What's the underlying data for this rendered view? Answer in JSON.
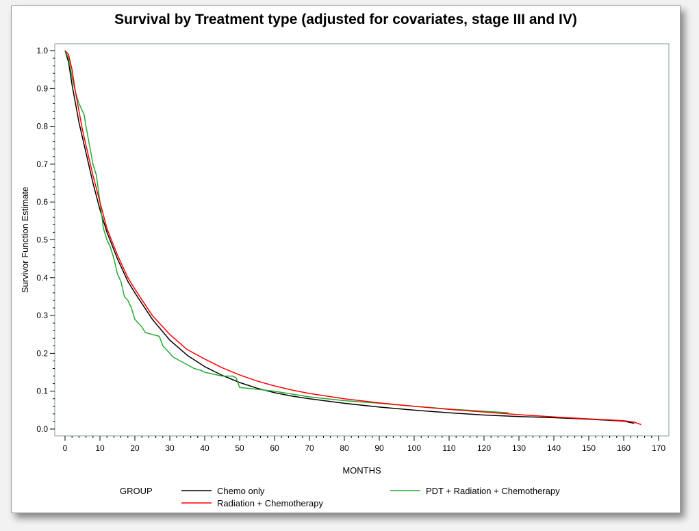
{
  "chart_data": {
    "type": "line",
    "title": "Survival by Treatment type (adjusted for covariates, stage III and IV)",
    "xlabel": "MONTHS",
    "ylabel": "Survivor Function Estimate",
    "xlim": [
      0,
      170
    ],
    "ylim": [
      0.0,
      1.0
    ],
    "xticks": [
      "0",
      "10",
      "20",
      "30",
      "40",
      "50",
      "60",
      "70",
      "80",
      "90",
      "100",
      "110",
      "120",
      "130",
      "140",
      "150",
      "160",
      "170"
    ],
    "yticks": [
      "0.0",
      "0.1",
      "0.2",
      "0.3",
      "0.4",
      "0.5",
      "0.6",
      "0.7",
      "0.8",
      "0.9",
      "1.0"
    ],
    "grid": false,
    "legend": {
      "title": "GROUP",
      "position": "bottom"
    },
    "series": [
      {
        "name": "Chemo only",
        "color": "#000000",
        "x": [
          0,
          1,
          2,
          3,
          4,
          5,
          6,
          7,
          8,
          10,
          12,
          15,
          18,
          20,
          25,
          30,
          35,
          40,
          45,
          50,
          55,
          60,
          65,
          70,
          80,
          90,
          100,
          110,
          120,
          130,
          140,
          150,
          160,
          163
        ],
        "y": [
          1.0,
          0.97,
          0.91,
          0.86,
          0.81,
          0.77,
          0.73,
          0.69,
          0.65,
          0.58,
          0.52,
          0.45,
          0.39,
          0.36,
          0.29,
          0.235,
          0.195,
          0.165,
          0.142,
          0.123,
          0.108,
          0.096,
          0.087,
          0.08,
          0.068,
          0.058,
          0.05,
          0.043,
          0.037,
          0.033,
          0.03,
          0.026,
          0.021,
          0.015
        ]
      },
      {
        "name": "Radiation + Chemotherapy",
        "color": "#ff0000",
        "x": [
          0,
          1,
          2,
          3,
          4,
          5,
          6,
          7,
          8,
          10,
          12,
          15,
          18,
          20,
          25,
          30,
          35,
          40,
          45,
          50,
          55,
          60,
          65,
          70,
          80,
          90,
          100,
          110,
          120,
          130,
          140,
          150,
          160,
          163,
          165
        ],
        "y": [
          1.0,
          0.99,
          0.95,
          0.89,
          0.84,
          0.79,
          0.75,
          0.71,
          0.67,
          0.6,
          0.53,
          0.46,
          0.4,
          0.37,
          0.3,
          0.25,
          0.21,
          0.185,
          0.162,
          0.143,
          0.127,
          0.114,
          0.103,
          0.094,
          0.08,
          0.069,
          0.06,
          0.052,
          0.045,
          0.038,
          0.032,
          0.027,
          0.022,
          0.018,
          0.012
        ]
      },
      {
        "name": "PDT + Radiation + Chemotherapy",
        "color": "#22aa33",
        "x": [
          0,
          1,
          2,
          3,
          4,
          4.5,
          5,
          5.5,
          6,
          7,
          8,
          9,
          10,
          11,
          12,
          13,
          14,
          15,
          16,
          17,
          18,
          19,
          20,
          22,
          23,
          25,
          27,
          28,
          30,
          31,
          33,
          35,
          37,
          39,
          40,
          45,
          48,
          49,
          50,
          55,
          60,
          70,
          80,
          90,
          100,
          110,
          120,
          127
        ],
        "y": [
          1.0,
          0.98,
          0.93,
          0.89,
          0.86,
          0.85,
          0.84,
          0.83,
          0.8,
          0.75,
          0.7,
          0.67,
          0.6,
          0.53,
          0.5,
          0.48,
          0.45,
          0.41,
          0.39,
          0.35,
          0.34,
          0.32,
          0.29,
          0.27,
          0.255,
          0.25,
          0.245,
          0.22,
          0.2,
          0.19,
          0.18,
          0.17,
          0.16,
          0.155,
          0.15,
          0.14,
          0.14,
          0.135,
          0.11,
          0.105,
          0.1,
          0.085,
          0.075,
          0.068,
          0.06,
          0.053,
          0.047,
          0.043
        ]
      }
    ]
  }
}
